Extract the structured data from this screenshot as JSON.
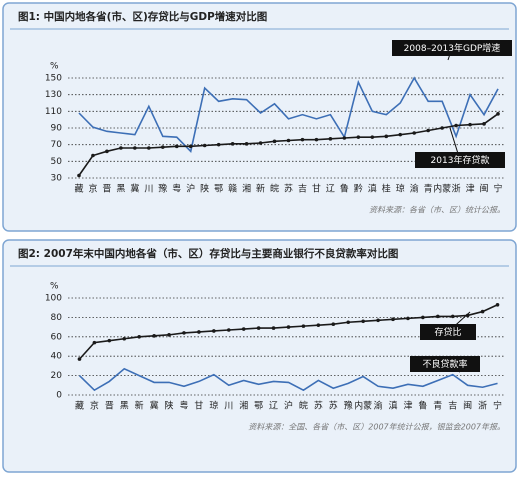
{
  "chart_data": [
    {
      "type": "line",
      "title": "图1: 中国内地各省(市、区)存贷比与GDP增速对比图",
      "y_label": "%",
      "source": "资料来源：各省（市、区）统计公报。",
      "categories": [
        "藏",
        "京",
        "晋",
        "黑",
        "冀",
        "川",
        "豫",
        "粤",
        "沪",
        "陕",
        "鄂",
        "赣",
        "湘",
        "新",
        "皖",
        "苏",
        "吉",
        "甘",
        "辽",
        "鲁",
        "黔",
        "滇",
        "桂",
        "琼",
        "渝",
        "青",
        "内蒙",
        "浙",
        "津",
        "闽",
        "宁"
      ],
      "series": [
        {
          "name": "2008–2013年GDP增速",
          "color": "#3d6fb6",
          "values": [
            108,
            91,
            86,
            84,
            82,
            116,
            80,
            79,
            62,
            138,
            122,
            125,
            124,
            108,
            119,
            101,
            106,
            101,
            106,
            79,
            145,
            110,
            106,
            120,
            150,
            122,
            122,
            80,
            130,
            106,
            137
          ]
        },
        {
          "name": "2013年存贷款",
          "color": "#1a1a1a",
          "values": [
            33,
            57,
            62,
            66,
            66,
            66,
            67,
            68,
            68,
            69,
            70,
            71,
            71,
            72,
            74,
            75,
            76,
            76,
            77,
            78,
            79,
            79,
            80,
            82,
            84,
            87,
            90,
            93,
            94,
            95,
            107
          ]
        }
      ],
      "ylim": [
        30,
        150
      ],
      "yticks": [
        30,
        50,
        70,
        90,
        110,
        130,
        150
      ],
      "grid": true
    },
    {
      "type": "line",
      "title": "图2: 2007年末中国内地各省（市、区）存贷比与主要商业银行不良贷款率对比图",
      "y_label": "%",
      "source": "资料来源：全国、各省（市、区）2007年统计公报，银监会2007年报。",
      "categories": [
        "藏",
        "京",
        "晋",
        "黑",
        "新",
        "冀",
        "陕",
        "粤",
        "甘",
        "琼",
        "川",
        "湘",
        "鄂",
        "辽",
        "沪",
        "皖",
        "苏",
        "苏",
        "豫",
        "内蒙",
        "渝",
        "滇",
        "津",
        "鲁",
        "青",
        "吉",
        "闽",
        "浙",
        "宁"
      ],
      "series": [
        {
          "name": "存贷比",
          "color": "#1a1a1a",
          "values": [
            37,
            54,
            56,
            58,
            60,
            61,
            62,
            64,
            65,
            66,
            67,
            68,
            69,
            69,
            70,
            71,
            72,
            73,
            75,
            76,
            77,
            78,
            79,
            80,
            81,
            81,
            82,
            86,
            93
          ]
        },
        {
          "name": "不良贷款率",
          "color": "#3d6fb6",
          "values": [
            20,
            5,
            14,
            27,
            20,
            13,
            13,
            9,
            14,
            21,
            10,
            15,
            11,
            14,
            13,
            5,
            15,
            7,
            12,
            19,
            9,
            7,
            11,
            9,
            15,
            21,
            10,
            8,
            12
          ]
        }
      ],
      "ylim": [
        0,
        100
      ],
      "yticks": [
        0,
        20,
        40,
        60,
        80,
        100
      ],
      "grid": true
    }
  ]
}
